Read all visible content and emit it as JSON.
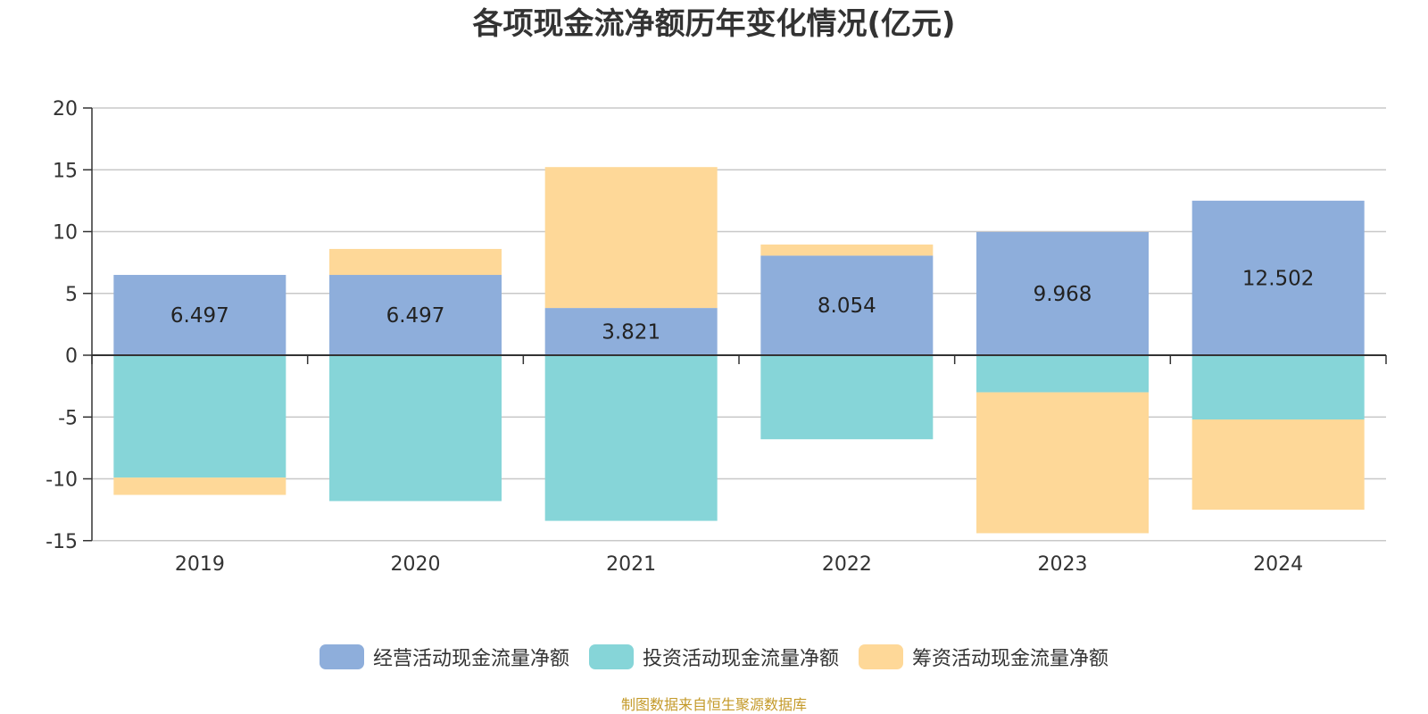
{
  "chart_data": {
    "type": "bar",
    "stacked": true,
    "title": "各项现金流净额历年变化情况(亿元)",
    "categories": [
      "2019",
      "2020",
      "2021",
      "2022",
      "2023",
      "2024"
    ],
    "series": [
      {
        "name": "经营活动现金流量净额",
        "color": "#8eaedb",
        "values": [
          6.497,
          6.497,
          3.821,
          8.054,
          9.968,
          12.502
        ],
        "data_labels": [
          "6.497",
          "6.497",
          "3.821",
          "8.054",
          "9.968",
          "12.502"
        ]
      },
      {
        "name": "投资活动现金流量净额",
        "color": "#86d5d8",
        "values": [
          -9.9,
          -11.8,
          -13.4,
          -6.8,
          -3.0,
          -5.2
        ]
      },
      {
        "name": "筹资活动现金流量净额",
        "color": "#fed898",
        "values": [
          -1.4,
          2.1,
          11.4,
          0.9,
          -11.4,
          -7.3
        ]
      }
    ],
    "yticks": [
      "20",
      "15",
      "10",
      "5",
      "0",
      "-5",
      "-10",
      "-15"
    ],
    "ylim": [
      -15,
      20
    ],
    "grid": true,
    "legend_position": "bottom"
  },
  "source_note": "制图数据来自恒生聚源数据库"
}
